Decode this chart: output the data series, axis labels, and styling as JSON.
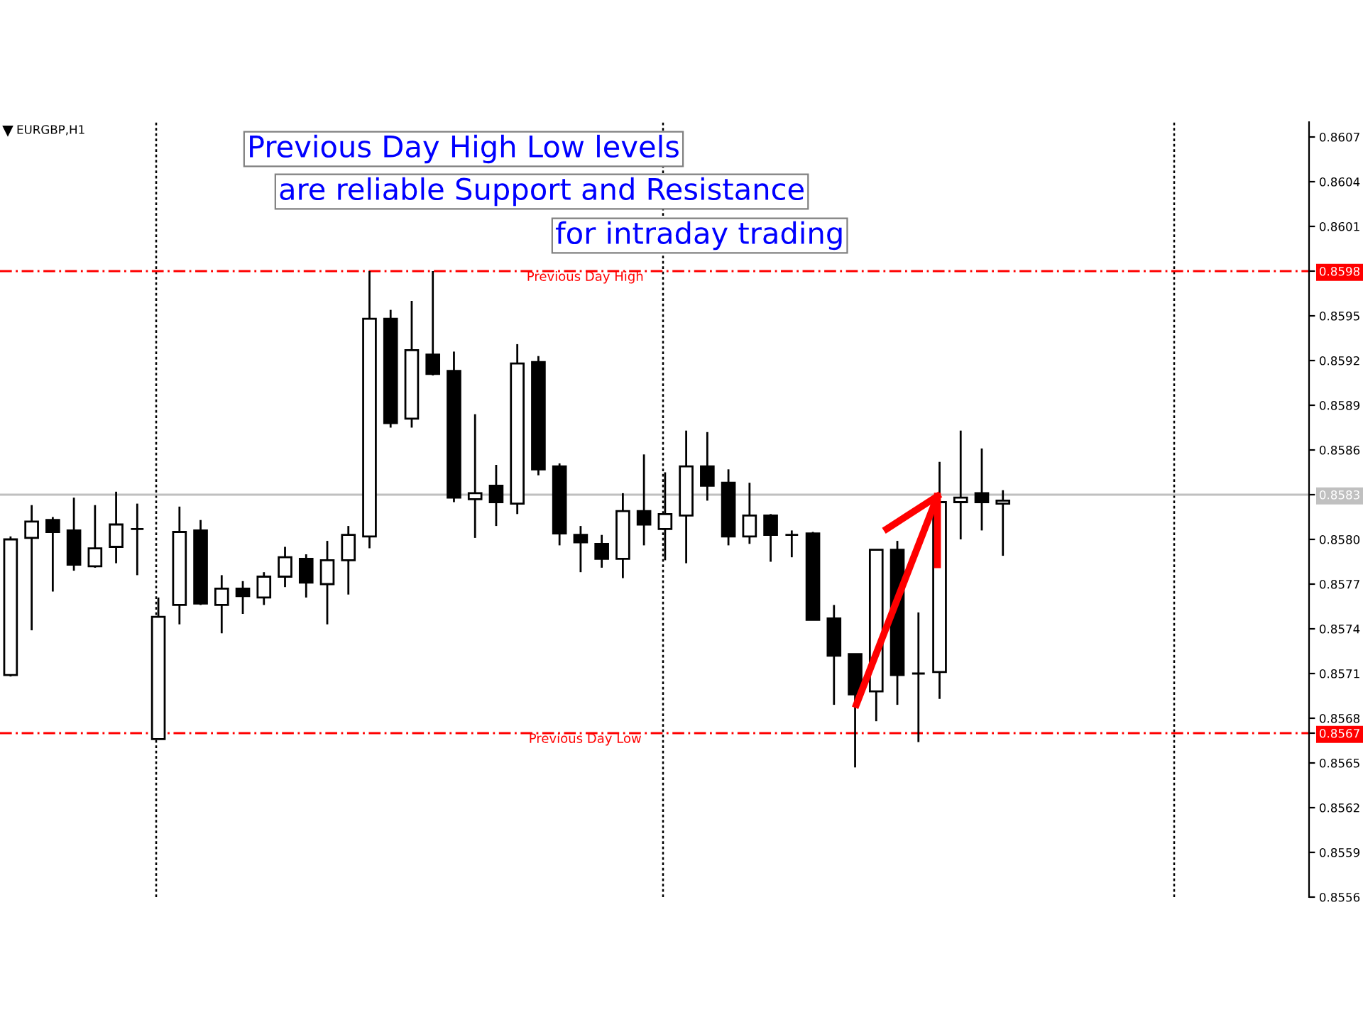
{
  "chart_data": {
    "type": "candlestick",
    "title": "EURGBP,H1",
    "annotations": [
      "Previous Day High Low levels",
      "are reliable Support and Resistance",
      "for intraday trading"
    ],
    "categories": [
      null,
      null,
      null,
      null,
      null,
      null,
      null,
      null,
      null,
      null,
      null,
      null,
      null,
      null,
      null,
      null,
      null,
      null,
      null,
      null,
      null,
      null,
      null,
      null,
      null,
      null,
      null,
      null,
      null,
      null,
      null,
      null,
      null,
      null,
      null,
      null,
      null,
      null,
      null,
      null,
      null,
      null,
      null,
      null,
      null,
      null,
      null,
      null,
      null,
      null,
      null,
      null,
      null,
      null,
      null,
      null,
      null,
      null,
      null,
      null,
      null,
      null
    ],
    "ohlc": [
      [
        0.85709,
        0.85802,
        0.85708,
        0.858
      ],
      [
        0.85801,
        0.85823,
        0.85739,
        0.85812
      ],
      [
        0.85813,
        0.85815,
        0.85765,
        0.85805
      ],
      [
        0.85806,
        0.85828,
        0.85779,
        0.85783
      ],
      [
        0.85782,
        0.85823,
        0.85781,
        0.85794
      ],
      [
        0.85795,
        0.85832,
        0.85784,
        0.8581
      ],
      [
        0.85807,
        0.85824,
        0.85776,
        0.85807
      ],
      [
        0.85666,
        0.85761,
        0.85666,
        0.85748
      ],
      [
        0.85756,
        0.85822,
        0.85743,
        0.85805
      ],
      [
        0.85806,
        0.85813,
        0.85756,
        0.85757
      ],
      [
        0.85756,
        0.85776,
        0.85737,
        0.85767
      ],
      [
        0.85767,
        0.85772,
        0.8575,
        0.85762
      ],
      [
        0.85761,
        0.85778,
        0.85756,
        0.85775
      ],
      [
        0.85775,
        0.85795,
        0.85768,
        0.85788
      ],
      [
        0.85787,
        0.8579,
        0.85761,
        0.85771
      ],
      [
        0.8577,
        0.85799,
        0.85743,
        0.85786
      ],
      [
        0.85786,
        0.85809,
        0.85763,
        0.85803
      ],
      [
        0.85802,
        0.8598,
        0.85794,
        0.85948
      ],
      [
        0.85948,
        0.85954,
        0.85875,
        0.85878
      ],
      [
        0.85881,
        0.8596,
        0.85875,
        0.85927
      ],
      [
        0.85924,
        0.8598,
        0.8591,
        0.85911
      ],
      [
        0.85913,
        0.85926,
        0.85825,
        0.85828
      ],
      [
        0.85827,
        0.85884,
        0.85801,
        0.85831
      ],
      [
        0.85836,
        0.8585,
        0.85809,
        0.85825
      ],
      [
        0.85824,
        0.85931,
        0.85817,
        0.85918
      ],
      [
        0.85919,
        0.85923,
        0.85843,
        0.85847
      ],
      [
        0.85849,
        0.85851,
        0.85796,
        0.85804
      ],
      [
        0.85803,
        0.85809,
        0.85778,
        0.85798
      ],
      [
        0.85797,
        0.85803,
        0.85781,
        0.85787
      ],
      [
        0.85787,
        0.85831,
        0.85774,
        0.85819
      ],
      [
        0.85819,
        0.85857,
        0.85796,
        0.8581
      ],
      [
        0.85807,
        0.85845,
        0.85786,
        0.85817
      ],
      [
        0.85816,
        0.85873,
        0.85784,
        0.85849
      ],
      [
        0.85849,
        0.85872,
        0.85826,
        0.85836
      ],
      [
        0.85838,
        0.85847,
        0.85796,
        0.85802
      ],
      [
        0.85802,
        0.85838,
        0.85797,
        0.85816
      ],
      [
        0.85816,
        0.85817,
        0.85785,
        0.85803
      ],
      [
        0.85803,
        0.85806,
        0.85788,
        0.85803
      ],
      [
        0.85804,
        0.85805,
        0.85746,
        0.85746
      ],
      [
        0.85747,
        0.85756,
        0.85689,
        0.85722
      ],
      [
        0.85723,
        0.85723,
        0.85647,
        0.85696
      ],
      [
        0.85698,
        0.85793,
        0.85678,
        0.85793
      ],
      [
        0.85793,
        0.85799,
        0.85689,
        0.85709
      ],
      [
        0.8571,
        0.85751,
        0.85664,
        0.8571
      ],
      [
        0.85711,
        0.85852,
        0.85693,
        0.85825
      ],
      [
        0.85825,
        0.85873,
        0.858,
        0.85828
      ],
      [
        0.85831,
        0.85861,
        0.85806,
        0.85825
      ],
      [
        0.85824,
        0.85833,
        0.85789,
        0.85826
      ],
      null,
      null,
      null,
      null,
      null,
      null,
      null,
      null,
      null,
      null,
      null,
      null,
      null,
      null
    ],
    "ylim": [
      0.8556,
      0.8608
    ],
    "yticks": [
      0.8607,
      0.8604,
      0.8601,
      0.8598,
      0.8595,
      0.8592,
      0.8589,
      0.8586,
      0.8583,
      {
        "value": 0.858,
        "label": "0.8580"
      },
      {
        "value": 0.8577,
        "label": "0.8577"
      },
      0.8574,
      0.8571,
      0.8568,
      0.8567,
      0.8565,
      0.8562,
      0.8559,
      0.8556
    ],
    "tick_labels": "y",
    "grid": "x",
    "ref_lines": [
      {
        "axis": "y",
        "value": 0.8598,
        "label": "Previous Day High",
        "color": "#ff0000",
        "line_style": "dashdot"
      },
      {
        "axis": "y",
        "value": 0.8567,
        "label": "Previous Day Low",
        "color": "#ff0000",
        "line_style": "dashdot"
      },
      {
        "axis": "y",
        "value": 0.8583,
        "color": "#c0c0c0",
        "line_style": "solid"
      }
    ]
  }
}
